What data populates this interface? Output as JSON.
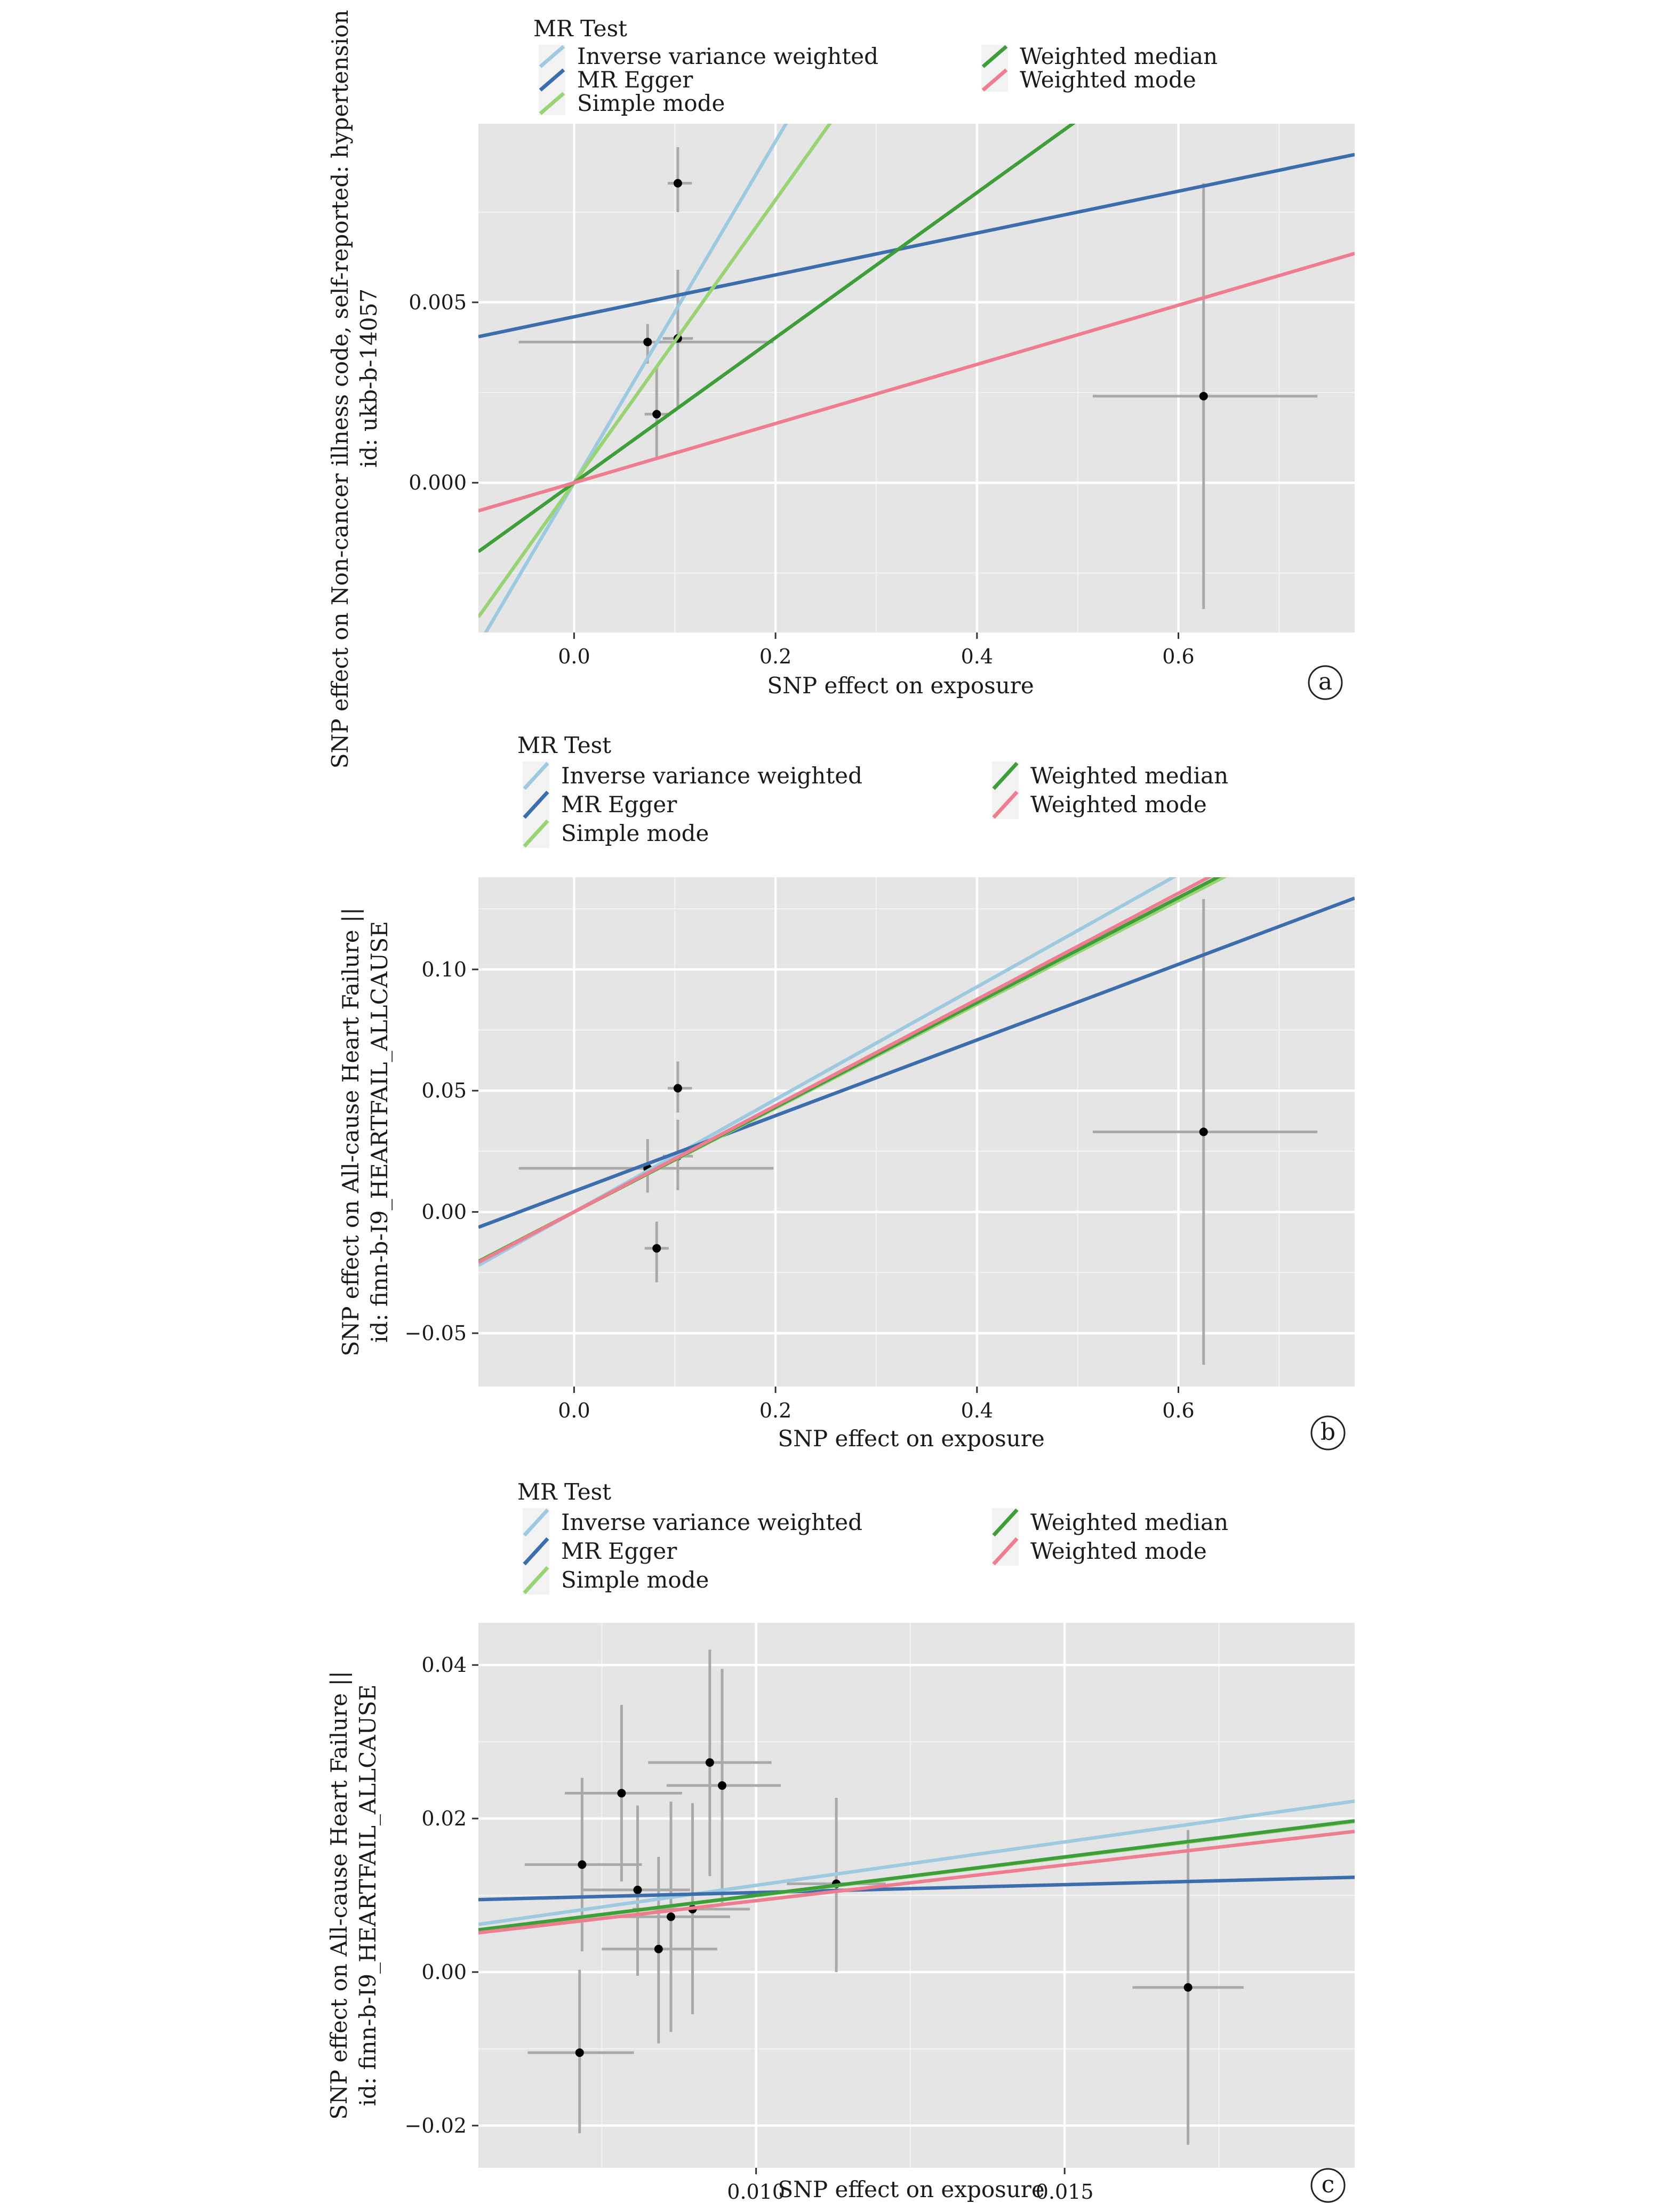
{
  "chart_data": [
    {
      "type": "scatter",
      "panel_tag": "a",
      "title": "",
      "xlabel": "SNP effect on exposure",
      "ylabel": [
        "SNP effect on Non-cancer illness code, self-reported: hypertension ||",
        "id: ukb-b-14057"
      ],
      "xlim": [
        -0.095,
        0.775
      ],
      "ylim": [
        -0.00415,
        0.00995
      ],
      "xticks": [
        0.0,
        0.2,
        0.4,
        0.6
      ],
      "xtick_labels": [
        "0.0",
        "0.2",
        "0.4",
        "0.6"
      ],
      "yticks": [
        0.0,
        0.005
      ],
      "ytick_labels": [
        "0.000",
        "0.005"
      ],
      "grid": true,
      "legend": {
        "title": "MR Test",
        "placement": "top",
        "entries": [
          {
            "label": "Inverse variance weighted",
            "color": "#9ecae1"
          },
          {
            "label": "MR Egger",
            "color": "#3c6eae"
          },
          {
            "label": "Simple mode",
            "color": "#98d474"
          },
          {
            "label": "Weighted median",
            "color": "#3d9e3a"
          },
          {
            "label": "Weighted mode",
            "color": "#ee7d8f"
          }
        ]
      },
      "points": [
        {
          "x": 0.103,
          "y": 0.0083,
          "x_lo": 0.093,
          "x_hi": 0.117,
          "y_lo": 0.0075,
          "y_hi": 0.0093
        },
        {
          "x": 0.073,
          "y": 0.0039,
          "x_lo": -0.055,
          "x_hi": 0.198,
          "y_lo": 0.0033,
          "y_hi": 0.0044
        },
        {
          "x": 0.103,
          "y": 0.004,
          "x_lo": 0.088,
          "x_hi": 0.118,
          "y_lo": 0.0021,
          "y_hi": 0.0059
        },
        {
          "x": 0.082,
          "y": 0.0019,
          "x_lo": 0.07,
          "x_hi": 0.094,
          "y_lo": 0.0007,
          "y_hi": 0.0032
        },
        {
          "x": 0.625,
          "y": 0.0024,
          "x_lo": 0.515,
          "x_hi": 0.738,
          "y_lo": -0.0035,
          "y_hi": 0.0083
        }
      ],
      "series": [
        {
          "name": "Inverse variance weighted",
          "color": "#9ecae1",
          "intercept": 0.0,
          "slope": 0.0473
        },
        {
          "name": "MR Egger",
          "color": "#3c6eae",
          "intercept": 0.0046,
          "slope": 0.0058
        },
        {
          "name": "Simple mode",
          "color": "#98d474",
          "intercept": 0.0,
          "slope": 0.0392
        },
        {
          "name": "Weighted median",
          "color": "#3d9e3a",
          "intercept": 0.0,
          "slope": 0.0201
        },
        {
          "name": "Weighted mode",
          "color": "#ee7d8f",
          "intercept": 0.0,
          "slope": 0.0082
        }
      ]
    },
    {
      "type": "scatter",
      "panel_tag": "b",
      "title": "",
      "xlabel": "SNP effect on exposure",
      "ylabel": [
        "SNP effect on All-cause Heart Failure ||",
        "id: finn-b-I9_HEARTFAIL_ALLCAUSE"
      ],
      "xlim": [
        -0.095,
        0.775
      ],
      "ylim": [
        -0.072,
        0.138
      ],
      "xticks": [
        0.0,
        0.2,
        0.4,
        0.6
      ],
      "xtick_labels": [
        "0.0",
        "0.2",
        "0.4",
        "0.6"
      ],
      "yticks": [
        -0.05,
        0.0,
        0.05,
        0.1
      ],
      "ytick_labels": [
        "−0.05",
        "0.00",
        "0.05",
        "0.10"
      ],
      "grid": true,
      "legend": {
        "title": "MR Test",
        "placement": "top",
        "entries": [
          {
            "label": "Inverse variance weighted",
            "color": "#9ecae1"
          },
          {
            "label": "MR Egger",
            "color": "#3c6eae"
          },
          {
            "label": "Simple mode",
            "color": "#98d474"
          },
          {
            "label": "Weighted median",
            "color": "#3d9e3a"
          },
          {
            "label": "Weighted mode",
            "color": "#ee7d8f"
          }
        ]
      },
      "points": [
        {
          "x": 0.103,
          "y": 0.051,
          "x_lo": 0.093,
          "x_hi": 0.117,
          "y_lo": 0.041,
          "y_hi": 0.062
        },
        {
          "x": 0.073,
          "y": 0.018,
          "x_lo": -0.055,
          "x_hi": 0.198,
          "y_lo": 0.008,
          "y_hi": 0.03
        },
        {
          "x": 0.103,
          "y": 0.023,
          "x_lo": 0.088,
          "x_hi": 0.118,
          "y_lo": 0.009,
          "y_hi": 0.038
        },
        {
          "x": 0.082,
          "y": -0.015,
          "x_lo": 0.07,
          "x_hi": 0.094,
          "y_lo": -0.029,
          "y_hi": -0.004
        },
        {
          "x": 0.625,
          "y": 0.033,
          "x_lo": 0.515,
          "x_hi": 0.738,
          "y_lo": -0.063,
          "y_hi": 0.129
        }
      ],
      "series": [
        {
          "name": "Inverse variance weighted",
          "color": "#9ecae1",
          "intercept": 0.0,
          "slope": 0.232
        },
        {
          "name": "MR Egger",
          "color": "#3c6eae",
          "intercept": 0.0085,
          "slope": 0.156
        },
        {
          "name": "Simple mode",
          "color": "#98d474",
          "intercept": 0.0,
          "slope": 0.214
        },
        {
          "name": "Weighted median",
          "color": "#3d9e3a",
          "intercept": 0.0,
          "slope": 0.216
        },
        {
          "name": "Weighted mode",
          "color": "#ee7d8f",
          "intercept": 0.0,
          "slope": 0.219
        }
      ]
    },
    {
      "type": "scatter",
      "panel_tag": "c",
      "title": "",
      "xlabel": "SNP effect on exposure",
      "ylabel": [
        "SNP effect on All-cause Heart Failure ||",
        "id: finn-b-I9_HEARTFAIL_ALLCAUSE"
      ],
      "xlim": [
        0.0055,
        0.0197
      ],
      "ylim": [
        -0.0255,
        0.0455
      ],
      "xticks": [
        0.01,
        0.015
      ],
      "xtick_labels": [
        "0.010",
        "0.015"
      ],
      "yticks": [
        -0.02,
        0.0,
        0.02,
        0.04
      ],
      "ytick_labels": [
        "−0.02",
        "0.00",
        "0.02",
        "0.04"
      ],
      "grid": true,
      "legend": {
        "title": "MR Test",
        "placement": "top",
        "entries": [
          {
            "label": "Inverse variance weighted",
            "color": "#9ecae1"
          },
          {
            "label": "MR Egger",
            "color": "#3c6eae"
          },
          {
            "label": "Simple mode",
            "color": "#98d474"
          },
          {
            "label": "Weighted median",
            "color": "#3d9e3a"
          },
          {
            "label": "Weighted mode",
            "color": "#ee7d8f"
          }
        ]
      },
      "points": [
        {
          "x": 0.00718,
          "y": 0.014,
          "x_lo": 0.00625,
          "x_hi": 0.00815,
          "y_lo": 0.0027,
          "y_hi": 0.0253
        },
        {
          "x": 0.00782,
          "y": 0.0233,
          "x_lo": 0.0069,
          "x_hi": 0.0088,
          "y_lo": 0.0118,
          "y_hi": 0.0348
        },
        {
          "x": 0.00808,
          "y": 0.0107,
          "x_lo": 0.0072,
          "x_hi": 0.00893,
          "y_lo": -0.0005,
          "y_hi": 0.0217
        },
        {
          "x": 0.00842,
          "y": 0.003,
          "x_lo": 0.0075,
          "x_hi": 0.00937,
          "y_lo": -0.0093,
          "y_hi": 0.015
        },
        {
          "x": 0.00862,
          "y": 0.0072,
          "x_lo": 0.00773,
          "x_hi": 0.00958,
          "y_lo": -0.0078,
          "y_hi": 0.0222
        },
        {
          "x": 0.00897,
          "y": 0.0082,
          "x_lo": 0.008,
          "x_hi": 0.0099,
          "y_lo": -0.0055,
          "y_hi": 0.022
        },
        {
          "x": 0.00925,
          "y": 0.0273,
          "x_lo": 0.00825,
          "x_hi": 0.01025,
          "y_lo": 0.0125,
          "y_hi": 0.042
        },
        {
          "x": 0.00945,
          "y": 0.0243,
          "x_lo": 0.00855,
          "x_hi": 0.0104,
          "y_lo": 0.009,
          "y_hi": 0.0395
        },
        {
          "x": 0.0113,
          "y": 0.0115,
          "x_lo": 0.0105,
          "x_hi": 0.0121,
          "y_lo": 0.0,
          "y_hi": 0.0227
        },
        {
          "x": 0.017,
          "y": -0.002,
          "x_lo": 0.0161,
          "x_hi": 0.0179,
          "y_lo": -0.0225,
          "y_hi": 0.0185
        },
        {
          "x": 0.00714,
          "y": -0.0105,
          "x_lo": 0.0063,
          "x_hi": 0.00802,
          "y_lo": -0.021,
          "y_hi": 0.0003
        }
      ],
      "series": [
        {
          "name": "Inverse variance weighted",
          "color": "#9ecae1",
          "intercept": 0.0,
          "slope": 1.13
        },
        {
          "name": "MR Egger",
          "color": "#3c6eae",
          "intercept": 0.00831,
          "slope": 0.205
        },
        {
          "name": "Simple mode",
          "color": "#98d474",
          "intercept": 0.0,
          "slope": 0.995
        },
        {
          "name": "Weighted median",
          "color": "#3d9e3a",
          "intercept": 0.0,
          "slope": 1.0
        },
        {
          "name": "Weighted mode",
          "color": "#ee7d8f",
          "intercept": 0.0,
          "slope": 0.93
        }
      ]
    }
  ]
}
